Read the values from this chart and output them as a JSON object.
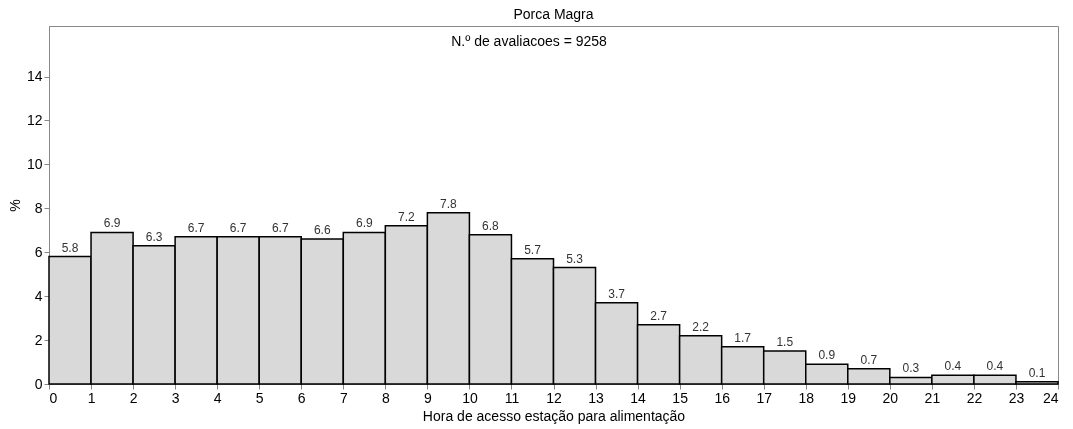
{
  "chart_data": {
    "type": "histogram",
    "title": "Porca Magra",
    "xlabel": "Hora de acesso estação para alimentação",
    "ylabel": "%",
    "annotations": [
      "N.º de avaliacoes =     9258"
    ],
    "bins": [
      0,
      1,
      2,
      3,
      4,
      5,
      6,
      7,
      8,
      9,
      10,
      11,
      12,
      13,
      14,
      15,
      16,
      17,
      18,
      19,
      20,
      21,
      22,
      23,
      24
    ],
    "values": [
      5.8,
      6.9,
      6.3,
      6.7,
      6.7,
      6.7,
      6.6,
      6.9,
      7.2,
      7.8,
      6.8,
      5.7,
      5.3,
      3.7,
      2.7,
      2.2,
      1.7,
      1.5,
      0.9,
      0.7,
      0.3,
      0.4,
      0.4,
      0.1
    ],
    "color": "#d9d9d9",
    "data_labels": true,
    "grid": false,
    "xlim": [
      0,
      24
    ],
    "xticks": [
      0,
      1,
      2,
      3,
      4,
      5,
      6,
      7,
      8,
      9,
      10,
      11,
      12,
      13,
      14,
      15,
      16,
      17,
      18,
      19,
      20,
      21,
      22,
      23,
      24
    ],
    "ylim": [
      0,
      16.3
    ],
    "yticks": [
      0,
      2,
      4,
      6,
      8,
      10,
      12,
      14
    ]
  }
}
